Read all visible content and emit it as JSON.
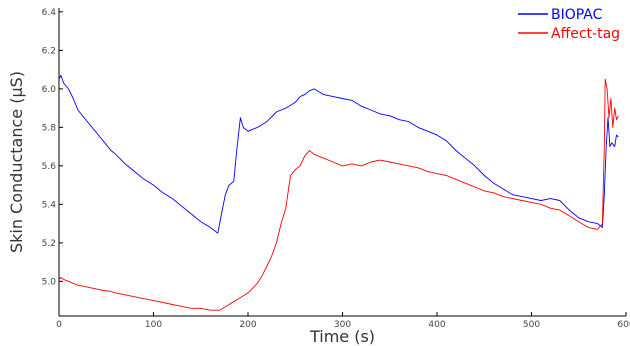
{
  "chart_data": {
    "type": "line",
    "xlabel": "Time (s)",
    "ylabel": "Skin Conductance (µS)",
    "xlim": [
      0,
      600
    ],
    "ylim": [
      4.82,
      6.42
    ],
    "x_ticks": [
      "0",
      "100",
      "200",
      "300",
      "400",
      "500",
      "600"
    ],
    "x_tick_values": [
      0,
      100,
      200,
      300,
      400,
      500,
      600
    ],
    "y_ticks": [
      "5.0",
      "5.2",
      "5.4",
      "5.6",
      "5.8",
      "6.0",
      "6.2",
      "6.4"
    ],
    "y_tick_values": [
      5.0,
      5.2,
      5.4,
      5.6,
      5.8,
      6.0,
      6.2,
      6.4
    ],
    "grid": false,
    "legend_position": "top-right",
    "series": [
      {
        "name": "BIOPAC",
        "color": "#0000ff",
        "points": [
          [
            0,
            6.05
          ],
          [
            2,
            6.07
          ],
          [
            5,
            6.03
          ],
          [
            10,
            6.0
          ],
          [
            15,
            5.95
          ],
          [
            20,
            5.89
          ],
          [
            30,
            5.83
          ],
          [
            40,
            5.77
          ],
          [
            50,
            5.71
          ],
          [
            55,
            5.68
          ],
          [
            60,
            5.66
          ],
          [
            70,
            5.61
          ],
          [
            80,
            5.57
          ],
          [
            90,
            5.53
          ],
          [
            100,
            5.5
          ],
          [
            110,
            5.46
          ],
          [
            120,
            5.43
          ],
          [
            130,
            5.39
          ],
          [
            140,
            5.35
          ],
          [
            150,
            5.31
          ],
          [
            160,
            5.28
          ],
          [
            168,
            5.25
          ],
          [
            172,
            5.35
          ],
          [
            176,
            5.45
          ],
          [
            180,
            5.5
          ],
          [
            185,
            5.52
          ],
          [
            188,
            5.68
          ],
          [
            192,
            5.85
          ],
          [
            195,
            5.8
          ],
          [
            200,
            5.78
          ],
          [
            210,
            5.8
          ],
          [
            220,
            5.83
          ],
          [
            230,
            5.88
          ],
          [
            240,
            5.9
          ],
          [
            250,
            5.93
          ],
          [
            255,
            5.96
          ],
          [
            260,
            5.97
          ],
          [
            265,
            5.99
          ],
          [
            270,
            6.0
          ],
          [
            280,
            5.97
          ],
          [
            290,
            5.96
          ],
          [
            300,
            5.95
          ],
          [
            310,
            5.94
          ],
          [
            320,
            5.91
          ],
          [
            330,
            5.89
          ],
          [
            340,
            5.87
          ],
          [
            350,
            5.86
          ],
          [
            360,
            5.84
          ],
          [
            370,
            5.83
          ],
          [
            380,
            5.8
          ],
          [
            390,
            5.78
          ],
          [
            400,
            5.76
          ],
          [
            410,
            5.73
          ],
          [
            420,
            5.68
          ],
          [
            430,
            5.64
          ],
          [
            440,
            5.6
          ],
          [
            450,
            5.55
          ],
          [
            460,
            5.51
          ],
          [
            470,
            5.48
          ],
          [
            480,
            5.45
          ],
          [
            490,
            5.44
          ],
          [
            500,
            5.43
          ],
          [
            510,
            5.42
          ],
          [
            520,
            5.43
          ],
          [
            530,
            5.42
          ],
          [
            540,
            5.37
          ],
          [
            550,
            5.33
          ],
          [
            560,
            5.31
          ],
          [
            570,
            5.3
          ],
          [
            575,
            5.28
          ],
          [
            577,
            5.45
          ],
          [
            579,
            5.7
          ],
          [
            581,
            5.85
          ],
          [
            583,
            5.7
          ],
          [
            585,
            5.72
          ],
          [
            588,
            5.7
          ],
          [
            590,
            5.76
          ],
          [
            592,
            5.75
          ]
        ]
      },
      {
        "name": "Affect-tag",
        "color": "#ff0000",
        "points": [
          [
            0,
            5.01
          ],
          [
            2,
            5.02
          ],
          [
            5,
            5.01
          ],
          [
            10,
            5.0
          ],
          [
            20,
            4.98
          ],
          [
            30,
            4.97
          ],
          [
            40,
            4.96
          ],
          [
            50,
            4.95
          ],
          [
            53,
            4.95
          ],
          [
            60,
            4.94
          ],
          [
            70,
            4.93
          ],
          [
            80,
            4.92
          ],
          [
            90,
            4.91
          ],
          [
            100,
            4.9
          ],
          [
            110,
            4.89
          ],
          [
            120,
            4.88
          ],
          [
            130,
            4.87
          ],
          [
            140,
            4.86
          ],
          [
            150,
            4.86
          ],
          [
            160,
            4.85
          ],
          [
            170,
            4.85
          ],
          [
            180,
            4.88
          ],
          [
            190,
            4.91
          ],
          [
            200,
            4.94
          ],
          [
            210,
            4.99
          ],
          [
            215,
            5.03
          ],
          [
            220,
            5.08
          ],
          [
            225,
            5.13
          ],
          [
            230,
            5.2
          ],
          [
            235,
            5.3
          ],
          [
            240,
            5.38
          ],
          [
            245,
            5.55
          ],
          [
            250,
            5.58
          ],
          [
            255,
            5.6
          ],
          [
            260,
            5.65
          ],
          [
            265,
            5.68
          ],
          [
            270,
            5.66
          ],
          [
            280,
            5.64
          ],
          [
            290,
            5.62
          ],
          [
            300,
            5.6
          ],
          [
            310,
            5.61
          ],
          [
            320,
            5.6
          ],
          [
            330,
            5.62
          ],
          [
            340,
            5.63
          ],
          [
            350,
            5.62
          ],
          [
            360,
            5.61
          ],
          [
            370,
            5.6
          ],
          [
            380,
            5.59
          ],
          [
            390,
            5.57
          ],
          [
            400,
            5.56
          ],
          [
            410,
            5.55
          ],
          [
            420,
            5.53
          ],
          [
            430,
            5.51
          ],
          [
            440,
            5.49
          ],
          [
            450,
            5.47
          ],
          [
            460,
            5.46
          ],
          [
            470,
            5.44
          ],
          [
            480,
            5.43
          ],
          [
            490,
            5.42
          ],
          [
            500,
            5.41
          ],
          [
            510,
            5.4
          ],
          [
            520,
            5.38
          ],
          [
            530,
            5.37
          ],
          [
            540,
            5.34
          ],
          [
            550,
            5.31
          ],
          [
            560,
            5.28
          ],
          [
            570,
            5.27
          ],
          [
            575,
            5.3
          ],
          [
            577,
            5.7
          ],
          [
            578,
            6.05
          ],
          [
            580,
            6.0
          ],
          [
            582,
            5.85
          ],
          [
            584,
            5.95
          ],
          [
            586,
            5.8
          ],
          [
            588,
            5.9
          ],
          [
            590,
            5.84
          ],
          [
            592,
            5.86
          ]
        ]
      }
    ]
  }
}
